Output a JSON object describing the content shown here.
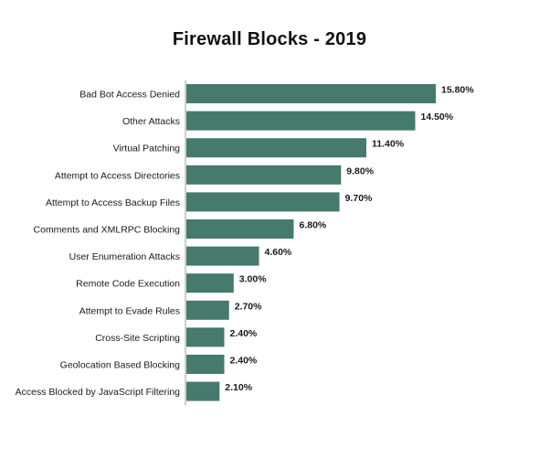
{
  "colors": {
    "bar": "#457A6C",
    "axis": "#bdbdbd",
    "text": "#1a1a1a",
    "background": "#ffffff"
  },
  "chart_data": {
    "type": "bar",
    "orientation": "horizontal",
    "title": "Firewall Blocks - 2019",
    "xlabel": "",
    "ylabel": "",
    "grid": false,
    "legend": "none",
    "value_format": "percent_2dp",
    "categories": [
      "Bad Bot Access Denied",
      "Other Attacks",
      "Virtual Patching",
      "Attempt to Access Directories",
      "Attempt to Access Backup Files",
      "Comments and XMLRPC Blocking",
      "User Enumeration Attacks",
      "Remote Code Execution",
      "Attempt to Evade Rules",
      "Cross-Site Scripting",
      "Geolocation Based Blocking",
      "Access Blocked by JavaScript Filtering"
    ],
    "values": [
      15.8,
      14.5,
      11.4,
      9.8,
      9.7,
      6.8,
      4.6,
      3.0,
      2.7,
      2.4,
      2.4,
      2.1
    ],
    "value_labels": [
      "15.80%",
      "14.50%",
      "11.40%",
      "9.80%",
      "9.70%",
      "6.80%",
      "4.60%",
      "3.00%",
      "2.70%",
      "2.40%",
      "2.40%",
      "2.10%"
    ]
  }
}
